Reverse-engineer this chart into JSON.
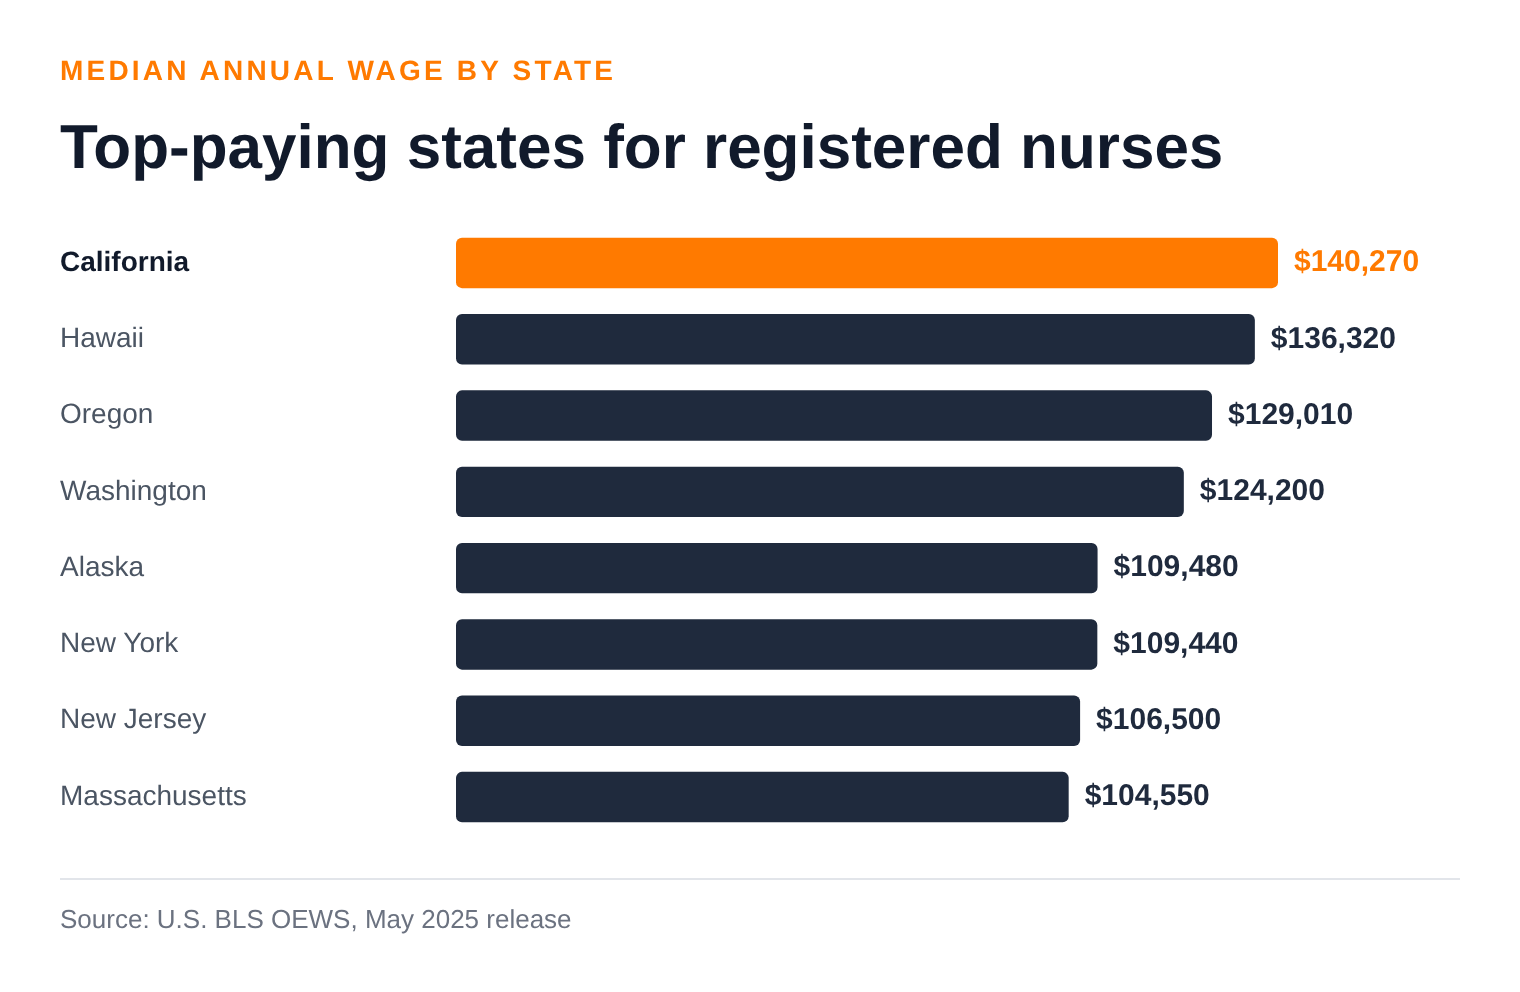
{
  "chart_data": {
    "type": "bar",
    "orientation": "horizontal",
    "subtitle": "MEDIAN ANNUAL WAGE BY STATE",
    "title": "Top-paying states for registered nurses",
    "categories": [
      "California",
      "Hawaii",
      "Oregon",
      "Washington",
      "Alaska",
      "New York",
      "New Jersey",
      "Massachusetts"
    ],
    "values": [
      140270,
      136320,
      129010,
      124200,
      109480,
      109440,
      106500,
      104550
    ],
    "colors": [
      "#ff7a00",
      "#1f2a3d",
      "#1f2a3d",
      "#1f2a3d",
      "#1f2a3d",
      "#1f2a3d",
      "#1f2a3d",
      "#1f2a3d"
    ],
    "value_labels": [
      "$140,270",
      "$136,320",
      "$129,010",
      "$124,200",
      "$109,480",
      "$109,440",
      "$106,500",
      "$104,550"
    ],
    "tick_labels": "y",
    "legend": false,
    "annotations": [
      "Source: U.S. BLS OEWS, May 2025 release"
    ]
  }
}
